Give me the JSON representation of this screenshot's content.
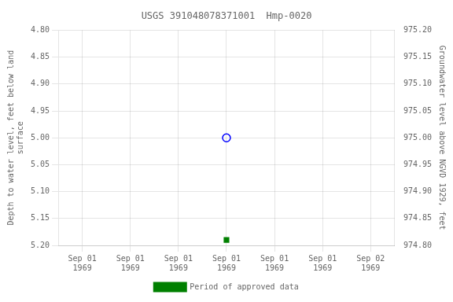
{
  "chart_data": {
    "type": "scatter",
    "title": "USGS 391048078371001  Hmp-0020",
    "categories": [
      "Sep 01\n1969",
      "Sep 01\n1969",
      "Sep 01\n1969",
      "Sep 01\n1969",
      "Sep 01\n1969",
      "Sep 01\n1969",
      "Sep 02\n1969"
    ],
    "series": [
      {
        "color": "blue",
        "marker": "open_circle",
        "values": [
          null,
          null,
          null,
          5.0,
          null,
          null,
          null
        ]
      },
      {
        "name": "Period of approved data",
        "color": "green",
        "marker": "square",
        "values": [
          null,
          null,
          null,
          5.19,
          null,
          null,
          null
        ]
      }
    ],
    "y_label": "Depth to water level, feet below land\nsurface",
    "y2_label": "Groundwater level above NGVD 1929, feet",
    "ylim": [
      5.2,
      4.8
    ],
    "yticks": [
      {
        "value": 4.8,
        "label": "4.80"
      },
      {
        "value": 4.85,
        "label": "4.85"
      },
      {
        "value": 4.9,
        "label": "4.90"
      },
      {
        "value": 4.95,
        "label": "4.95"
      },
      {
        "value": 5.0,
        "label": "5.00"
      },
      {
        "value": 5.05,
        "label": "5.05"
      },
      {
        "value": 5.1,
        "label": "5.10"
      },
      {
        "value": 5.15,
        "label": "5.15"
      },
      {
        "value": 5.2,
        "label": "5.20"
      }
    ],
    "y2lim": [
      974.8,
      975.2
    ],
    "y2ticks": [
      {
        "value": 975.2,
        "label": "975.20"
      },
      {
        "value": 975.15,
        "label": "975.15"
      },
      {
        "value": 975.1,
        "label": "975.10"
      },
      {
        "value": 975.05,
        "label": "975.05"
      },
      {
        "value": 975.0,
        "label": "975.00"
      },
      {
        "value": 974.95,
        "label": "974.95"
      },
      {
        "value": 974.9,
        "label": "974.90"
      },
      {
        "value": 974.85,
        "label": "974.85"
      },
      {
        "value": 974.8,
        "label": "974.80"
      }
    ],
    "grid": true,
    "legend": "bottom"
  }
}
